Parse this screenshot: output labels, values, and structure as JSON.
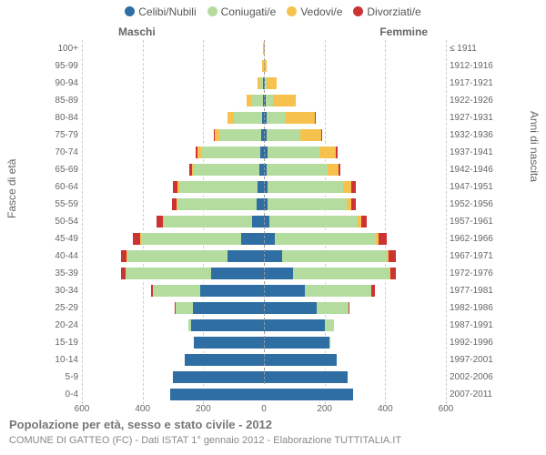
{
  "chart": {
    "type": "population-pyramid",
    "title": "Popolazione per età, sesso e stato civile - 2012",
    "subtitle": "COMUNE DI GATTEO (FC) - Dati ISTAT 1° gennaio 2012 - Elaborazione TUTTITALIA.IT",
    "gender_labels": {
      "male": "Maschi",
      "female": "Femmine"
    },
    "yaxis_left": "Fasce di età",
    "yaxis_right": "Anni di nascita",
    "xmax": 600,
    "xticks": [
      600,
      400,
      200,
      0,
      200,
      400,
      600
    ],
    "legend": [
      {
        "label": "Celibi/Nubili",
        "color": "#2f6ea3"
      },
      {
        "label": "Coniugati/e",
        "color": "#b5dc9f"
      },
      {
        "label": "Vedovi/e",
        "color": "#f7c14e"
      },
      {
        "label": "Divorziati/e",
        "color": "#cc3333"
      }
    ],
    "colors": {
      "celibi": "#2f6ea3",
      "coniugati": "#b5dc9f",
      "vedovi": "#f7c14e",
      "divorziati": "#cc3333",
      "grid": "#cccccc",
      "axis_text": "#666666",
      "background": "#ffffff"
    },
    "rows": [
      {
        "age": "100+",
        "birth": "≤ 1911",
        "m": {
          "celibi": 0,
          "coniugati": 0,
          "vedovi": 2,
          "divorziati": 0
        },
        "f": {
          "celibi": 0,
          "coniugati": 0,
          "vedovi": 3,
          "divorziati": 0
        }
      },
      {
        "age": "95-99",
        "birth": "1912-1916",
        "m": {
          "celibi": 0,
          "coniugati": 2,
          "vedovi": 3,
          "divorziati": 0
        },
        "f": {
          "celibi": 0,
          "coniugati": 0,
          "vedovi": 10,
          "divorziati": 0
        }
      },
      {
        "age": "90-94",
        "birth": "1917-1921",
        "m": {
          "celibi": 2,
          "coniugati": 10,
          "vedovi": 8,
          "divorziati": 0
        },
        "f": {
          "celibi": 3,
          "coniugati": 5,
          "vedovi": 35,
          "divorziati": 0
        }
      },
      {
        "age": "85-89",
        "birth": "1922-1926",
        "m": {
          "celibi": 3,
          "coniugati": 40,
          "vedovi": 15,
          "divorziati": 0
        },
        "f": {
          "celibi": 5,
          "coniugati": 25,
          "vedovi": 75,
          "divorziati": 0
        }
      },
      {
        "age": "80-84",
        "birth": "1927-1931",
        "m": {
          "celibi": 5,
          "coniugati": 95,
          "vedovi": 20,
          "divorziati": 0
        },
        "f": {
          "celibi": 8,
          "coniugati": 65,
          "vedovi": 95,
          "divorziati": 2
        }
      },
      {
        "age": "75-79",
        "birth": "1932-1936",
        "m": {
          "celibi": 8,
          "coniugati": 140,
          "vedovi": 15,
          "divorziati": 3
        },
        "f": {
          "celibi": 10,
          "coniugati": 110,
          "vedovi": 70,
          "divorziati": 3
        }
      },
      {
        "age": "70-74",
        "birth": "1937-1941",
        "m": {
          "celibi": 12,
          "coniugati": 195,
          "vedovi": 12,
          "divorziati": 5
        },
        "f": {
          "celibi": 12,
          "coniugati": 170,
          "vedovi": 55,
          "divorziati": 5
        }
      },
      {
        "age": "65-69",
        "birth": "1942-1946",
        "m": {
          "celibi": 15,
          "coniugati": 215,
          "vedovi": 8,
          "divorziati": 8
        },
        "f": {
          "celibi": 10,
          "coniugati": 200,
          "vedovi": 35,
          "divorziati": 8
        }
      },
      {
        "age": "60-64",
        "birth": "1947-1951",
        "m": {
          "celibi": 20,
          "coniugati": 260,
          "vedovi": 5,
          "divorziati": 15
        },
        "f": {
          "celibi": 12,
          "coniugati": 250,
          "vedovi": 25,
          "divorziati": 15
        }
      },
      {
        "age": "55-59",
        "birth": "1952-1956",
        "m": {
          "celibi": 25,
          "coniugati": 260,
          "vedovi": 4,
          "divorziati": 15
        },
        "f": {
          "celibi": 12,
          "coniugati": 260,
          "vedovi": 15,
          "divorziati": 15
        }
      },
      {
        "age": "50-54",
        "birth": "1957-1961",
        "m": {
          "celibi": 40,
          "coniugati": 290,
          "vedovi": 3,
          "divorziati": 20
        },
        "f": {
          "celibi": 18,
          "coniugati": 290,
          "vedovi": 12,
          "divorziati": 20
        }
      },
      {
        "age": "45-49",
        "birth": "1962-1966",
        "m": {
          "celibi": 75,
          "coniugati": 330,
          "vedovi": 2,
          "divorziati": 25
        },
        "f": {
          "celibi": 35,
          "coniugati": 335,
          "vedovi": 8,
          "divorziati": 28
        }
      },
      {
        "age": "40-44",
        "birth": "1967-1971",
        "m": {
          "celibi": 120,
          "coniugati": 330,
          "vedovi": 2,
          "divorziati": 20
        },
        "f": {
          "celibi": 60,
          "coniugati": 345,
          "vedovi": 5,
          "divorziati": 25
        }
      },
      {
        "age": "35-39",
        "birth": "1972-1976",
        "m": {
          "celibi": 175,
          "coniugati": 280,
          "vedovi": 0,
          "divorziati": 15
        },
        "f": {
          "celibi": 95,
          "coniugati": 320,
          "vedovi": 3,
          "divorziati": 18
        }
      },
      {
        "age": "30-34",
        "birth": "1977-1981",
        "m": {
          "celibi": 210,
          "coniugati": 155,
          "vedovi": 0,
          "divorziati": 8
        },
        "f": {
          "celibi": 135,
          "coniugati": 220,
          "vedovi": 0,
          "divorziati": 10
        }
      },
      {
        "age": "25-29",
        "birth": "1982-1986",
        "m": {
          "celibi": 235,
          "coniugati": 55,
          "vedovi": 0,
          "divorziati": 3
        },
        "f": {
          "celibi": 175,
          "coniugati": 105,
          "vedovi": 0,
          "divorziati": 3
        }
      },
      {
        "age": "20-24",
        "birth": "1987-1991",
        "m": {
          "celibi": 240,
          "coniugati": 10,
          "vedovi": 0,
          "divorziati": 0
        },
        "f": {
          "celibi": 200,
          "coniugati": 30,
          "vedovi": 0,
          "divorziati": 0
        }
      },
      {
        "age": "15-19",
        "birth": "1992-1996",
        "m": {
          "celibi": 230,
          "coniugati": 0,
          "vedovi": 0,
          "divorziati": 0
        },
        "f": {
          "celibi": 215,
          "coniugati": 2,
          "vedovi": 0,
          "divorziati": 0
        }
      },
      {
        "age": "10-14",
        "birth": "1997-2001",
        "m": {
          "celibi": 260,
          "coniugati": 0,
          "vedovi": 0,
          "divorziati": 0
        },
        "f": {
          "celibi": 240,
          "coniugati": 0,
          "vedovi": 0,
          "divorziati": 0
        }
      },
      {
        "age": "5-9",
        "birth": "2002-2006",
        "m": {
          "celibi": 300,
          "coniugati": 0,
          "vedovi": 0,
          "divorziati": 0
        },
        "f": {
          "celibi": 275,
          "coniugati": 0,
          "vedovi": 0,
          "divorziati": 0
        }
      },
      {
        "age": "0-4",
        "birth": "2007-2011",
        "m": {
          "celibi": 310,
          "coniugati": 0,
          "vedovi": 0,
          "divorziati": 0
        },
        "f": {
          "celibi": 295,
          "coniugati": 0,
          "vedovi": 0,
          "divorziati": 0
        }
      }
    ]
  }
}
